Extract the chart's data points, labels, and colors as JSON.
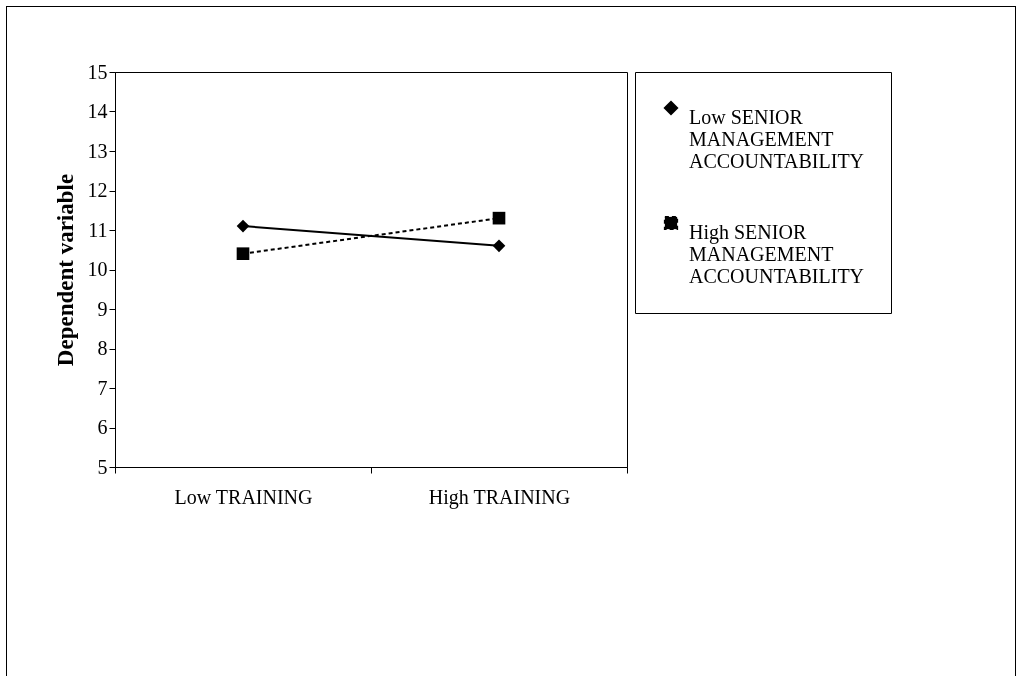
{
  "chart_data": {
    "type": "line",
    "ylabel": "Dependent variable",
    "categories": [
      "Low TRAINING",
      "High TRAINING"
    ],
    "series": [
      {
        "name": "Low SENIOR MANAGEMENT ACCOUNTABILITY",
        "color": "#000000",
        "values": [
          11.1,
          10.6
        ],
        "marker": "diamond",
        "line_style": "solid"
      },
      {
        "name": "High SENIOR MANAGEMENT ACCOUNTABILITY",
        "color": "#000000",
        "values": [
          10.4,
          11.3
        ],
        "marker": "square",
        "line_style": "dashed"
      }
    ],
    "ylim": [
      5,
      15
    ],
    "yticks": [
      5,
      6,
      7,
      8,
      9,
      10,
      11,
      12,
      13,
      14,
      15
    ],
    "grid": false,
    "legend": "right"
  }
}
